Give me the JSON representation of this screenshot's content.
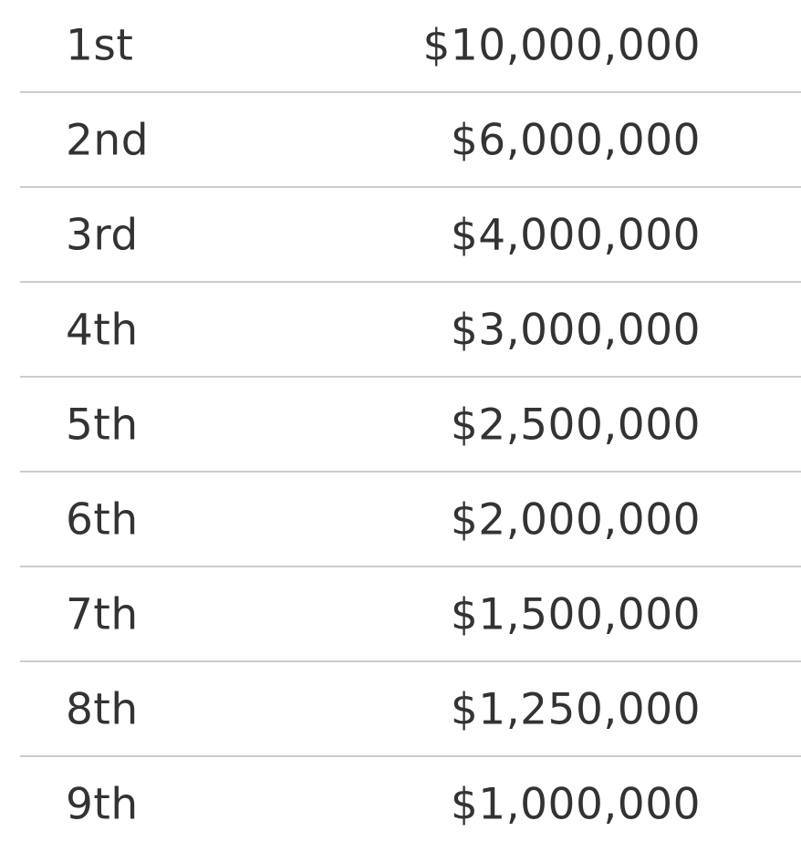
{
  "prize_table": {
    "rows": [
      {
        "place": "1st",
        "prize": "$10,000,000"
      },
      {
        "place": "2nd",
        "prize": "$6,000,000"
      },
      {
        "place": "3rd",
        "prize": "$4,000,000"
      },
      {
        "place": "4th",
        "prize": "$3,000,000"
      },
      {
        "place": "5th",
        "prize": "$2,500,000"
      },
      {
        "place": "6th",
        "prize": "$2,000,000"
      },
      {
        "place": "7th",
        "prize": "$1,500,000"
      },
      {
        "place": "8th",
        "prize": "$1,250,000"
      },
      {
        "place": "9th",
        "prize": "$1,000,000"
      }
    ]
  }
}
